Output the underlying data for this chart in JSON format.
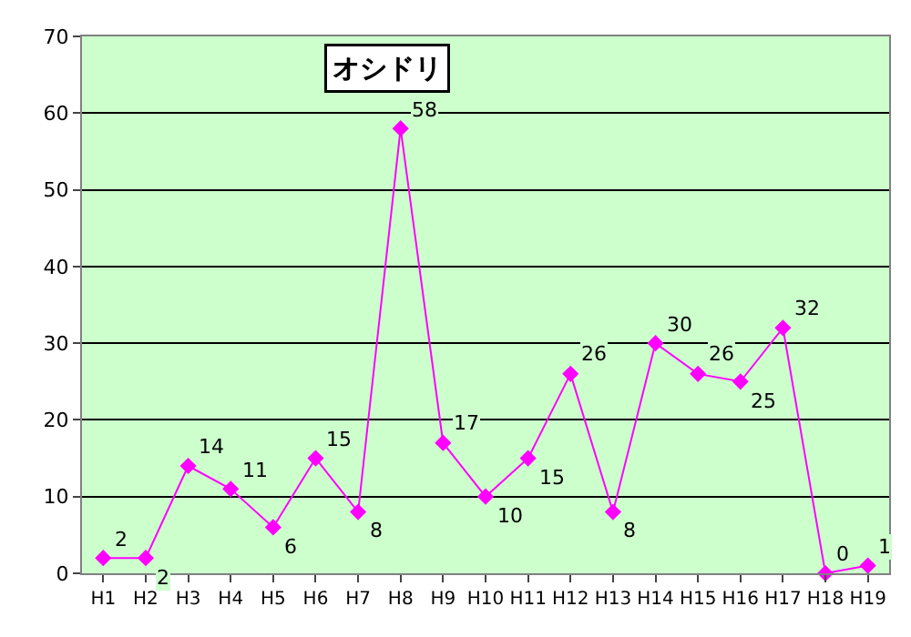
{
  "chart_data": {
    "type": "line",
    "title": "オシドリ",
    "categories": [
      "H1",
      "H2",
      "H3",
      "H4",
      "H5",
      "H6",
      "H7",
      "H8",
      "H9",
      "H10",
      "H11",
      "H12",
      "H13",
      "H14",
      "H15",
      "H16",
      "H17",
      "H18",
      "H19"
    ],
    "values": [
      2,
      2,
      14,
      11,
      6,
      15,
      8,
      58,
      17,
      10,
      15,
      26,
      8,
      30,
      26,
      25,
      32,
      0,
      1
    ],
    "color": "#ff00ff",
    "marker": "diamond",
    "line_style": "solid",
    "data_labels": true,
    "ylim": [
      0,
      70
    ],
    "yticks": [
      0,
      10,
      20,
      30,
      40,
      50,
      60,
      70
    ],
    "grid": "y",
    "legend": false
  }
}
